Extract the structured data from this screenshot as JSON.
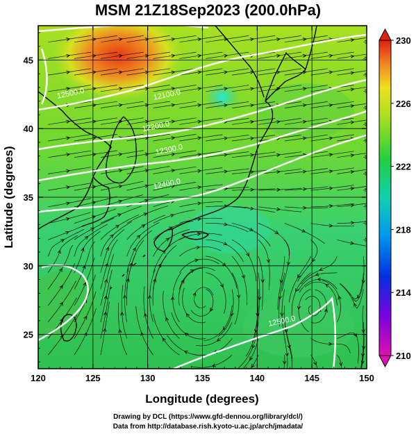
{
  "title": "MSM 21Z18Sep2023 (200.0hPa)",
  "axes": {
    "xlabel": "Longitude (degrees)",
    "ylabel": "Latitude  (degrees)",
    "xlim": [
      120,
      150
    ],
    "ylim": [
      22.5,
      47.5
    ],
    "xticks": [
      120,
      125,
      130,
      135,
      140,
      145,
      150
    ],
    "yticks": [
      25,
      30,
      35,
      40,
      45
    ]
  },
  "colorbar": {
    "ticks": [
      210,
      214,
      218,
      222,
      226,
      230
    ],
    "min": 210,
    "max": 230
  },
  "contour_labels": [
    {
      "text": "12100.0",
      "lon": 131.8,
      "lat": 42.3
    },
    {
      "text": "12200.0",
      "lon": 130.8,
      "lat": 40.0
    },
    {
      "text": "12300.0",
      "lon": 132.0,
      "lat": 38.3
    },
    {
      "text": "12400.0",
      "lon": 131.8,
      "lat": 35.8
    },
    {
      "text": "12500.0",
      "lon": 123.0,
      "lat": 42.4
    },
    {
      "text": "12500.0",
      "lon": 142.3,
      "lat": 25.8
    }
  ],
  "credits": {
    "line1": "Drawing by DCL (https://www.gfd-dennou.org/library/dcl/)",
    "line2": "Data from http://database.rish.kyoto-u.ac.jp/arch/jmadata/"
  },
  "colors": {
    "field_low": "#c000c0",
    "field_mid": "#30d060",
    "field_high": "#e02010",
    "contour": "#ffffff",
    "streamline": "#000000"
  }
}
